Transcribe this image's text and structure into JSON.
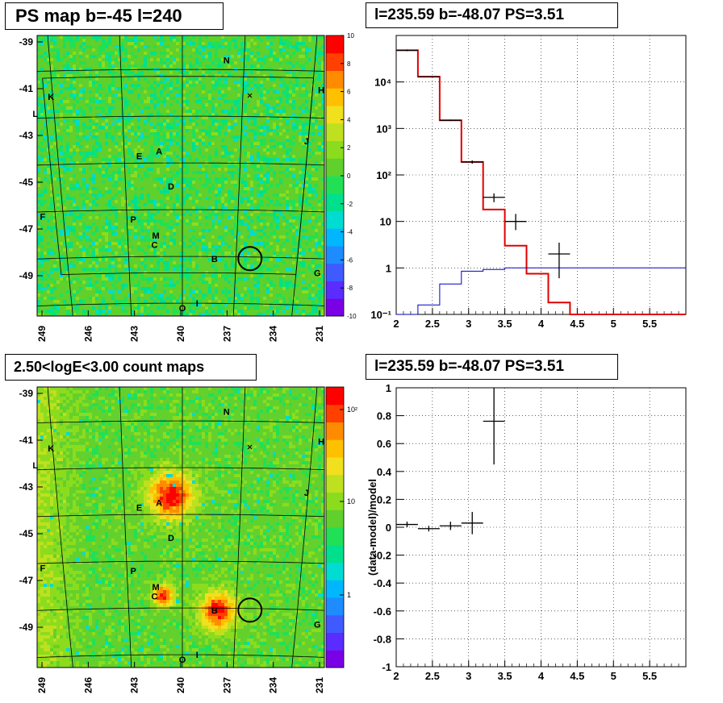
{
  "colors": {
    "map_background": "#5fd02c",
    "model_line": "#e00000",
    "background_line": "#0000c0",
    "data_points": "#000000",
    "palette": [
      "#7a00e6",
      "#5b2cff",
      "#3f5bff",
      "#1e8cff",
      "#00b7ff",
      "#00dcd2",
      "#00e08c",
      "#22e055",
      "#5fd02c",
      "#8cdc1e",
      "#bfe01e",
      "#f0e01e",
      "#ffc000",
      "#ff8c00",
      "#ff4000",
      "#ff0000"
    ]
  },
  "panels": {
    "ps_map": {
      "title": "PS map b=-45 l=240",
      "zlabels": [
        "10",
        "8",
        "6",
        "4",
        "2",
        "0",
        "-2",
        "-4",
        "-6",
        "-8",
        "-10"
      ]
    },
    "count_map": {
      "title": "2.50<logE<3.00 count maps",
      "zlabels": [
        "10²",
        "10",
        "1"
      ]
    },
    "spectrum": {
      "title": "l=235.59 b=-48.07 PS=3.51"
    },
    "residual": {
      "title": "l=235.59 b=-48.07 PS=3.51",
      "ylabel": "(data-model)/model"
    }
  },
  "map": {
    "xticks": [
      "249",
      "246",
      "243",
      "240",
      "237",
      "234",
      "231"
    ],
    "yticks": [
      "-39",
      "-41",
      "-43",
      "-45",
      "-47",
      "-49"
    ],
    "source_labels": [
      {
        "name": "N",
        "l": 237.5,
        "b": -39.6
      },
      {
        "name": "H",
        "l": 232.0,
        "b": -40.8
      },
      {
        "name": "K",
        "l": 247.6,
        "b": -41.1
      },
      {
        "name": "L",
        "l": 248.6,
        "b": -41.8
      },
      {
        "name": "J",
        "l": 232.6,
        "b": -43.0
      },
      {
        "name": "A",
        "l": 241.4,
        "b": -43.5
      },
      {
        "name": "E",
        "l": 242.6,
        "b": -43.7
      },
      {
        "name": "D",
        "l": 240.7,
        "b": -45.0
      },
      {
        "name": "F",
        "l": 248.8,
        "b": -46.2
      },
      {
        "name": "P",
        "l": 243.1,
        "b": -46.4
      },
      {
        "name": "M",
        "l": 241.7,
        "b": -47.1
      },
      {
        "name": "C",
        "l": 241.8,
        "b": -47.5
      },
      {
        "name": "B",
        "l": 237.9,
        "b": -48.1
      },
      {
        "name": "G",
        "l": 231.1,
        "b": -48.6
      },
      {
        "name": "O",
        "l": 240.0,
        "b": -50.2
      },
      {
        "name": "I",
        "l": 239.0,
        "b": -50.0
      }
    ],
    "cross": {
      "l": 236.1,
      "b": -41.1
    },
    "circle": {
      "l": 235.59,
      "b": -48.07
    }
  },
  "chart_data": [
    {
      "type": "line",
      "title": "l=235.59 b=-48.07 PS=3.51",
      "xlim": [
        2,
        6
      ],
      "ylim": [
        0.1,
        100000
      ],
      "log_y": true,
      "grid": true,
      "xticks": [
        "2",
        "2.5",
        "3",
        "3.5",
        "4",
        "4.5",
        "5",
        "5.5"
      ],
      "yticks": [
        {
          "value": 0.1,
          "label": "10⁻¹"
        },
        {
          "value": 1,
          "label": "1"
        },
        {
          "value": 10,
          "label": "10"
        },
        {
          "value": 100,
          "label": "10²"
        },
        {
          "value": 1000,
          "label": "10³"
        },
        {
          "value": 10000,
          "label": "10⁴"
        }
      ],
      "series": [
        {
          "style": "step",
          "color": "#e00000",
          "edges": [
            2.0,
            2.3,
            2.6,
            2.9,
            3.2,
            3.5,
            3.8,
            4.1,
            4.4,
            6.0
          ],
          "values": [
            48000,
            13000,
            1500,
            190,
            18,
            3.0,
            0.75,
            0.18,
            0.1
          ]
        },
        {
          "style": "step",
          "color": "#0000c0",
          "edges": [
            2.0,
            2.3,
            2.6,
            2.9,
            3.2,
            3.5,
            6.0
          ],
          "values": [
            0.1,
            0.16,
            0.45,
            0.85,
            0.93,
            1.0
          ]
        },
        {
          "style": "errorbar",
          "color": "#000000",
          "points": [
            {
              "x": 2.15,
              "y": 48000,
              "xerr": 0.15,
              "ylo": 46000,
              "yhi": 50000
            },
            {
              "x": 2.45,
              "y": 13000,
              "xerr": 0.15,
              "ylo": 12700,
              "yhi": 13300
            },
            {
              "x": 2.75,
              "y": 1500,
              "xerr": 0.15,
              "ylo": 1450,
              "yhi": 1550
            },
            {
              "x": 3.05,
              "y": 190,
              "xerr": 0.15,
              "ylo": 175,
              "yhi": 205
            },
            {
              "x": 3.35,
              "y": 33,
              "xerr": 0.15,
              "ylo": 26,
              "yhi": 40
            },
            {
              "x": 3.65,
              "y": 10,
              "xerr": 0.15,
              "ylo": 6.5,
              "yhi": 14.5
            },
            {
              "x": 4.25,
              "y": 2,
              "xerr": 0.15,
              "ylo": 0.6,
              "yhi": 3.5
            }
          ]
        }
      ]
    },
    {
      "type": "scatter",
      "title": "l=235.59 b=-48.07 PS=3.51",
      "ylabel": "(data-model)/model",
      "xlim": [
        2,
        6
      ],
      "ylim": [
        -1,
        1
      ],
      "grid": true,
      "xticks": [
        "2",
        "2.5",
        "3",
        "3.5",
        "4",
        "4.5",
        "5",
        "5.5"
      ],
      "yticks": [
        "1",
        "0.8",
        "0.6",
        "0.4",
        "0.2",
        "0",
        "-0.2",
        "-0.4",
        "-0.6",
        "-0.8",
        "-1"
      ],
      "series": [
        {
          "style": "errorbar",
          "color": "#000000",
          "points": [
            {
              "x": 2.15,
              "y": 0.02,
              "xerr": 0.15,
              "ylo": 0.0,
              "yhi": 0.04
            },
            {
              "x": 2.45,
              "y": -0.01,
              "xerr": 0.15,
              "ylo": -0.03,
              "yhi": 0.01
            },
            {
              "x": 2.75,
              "y": 0.01,
              "xerr": 0.15,
              "ylo": -0.02,
              "yhi": 0.04
            },
            {
              "x": 3.05,
              "y": 0.03,
              "xerr": 0.15,
              "ylo": -0.05,
              "yhi": 0.11
            },
            {
              "x": 3.35,
              "y": 0.76,
              "xerr": 0.15,
              "ylo": 0.45,
              "yhi": 1.0
            }
          ]
        }
      ]
    }
  ]
}
